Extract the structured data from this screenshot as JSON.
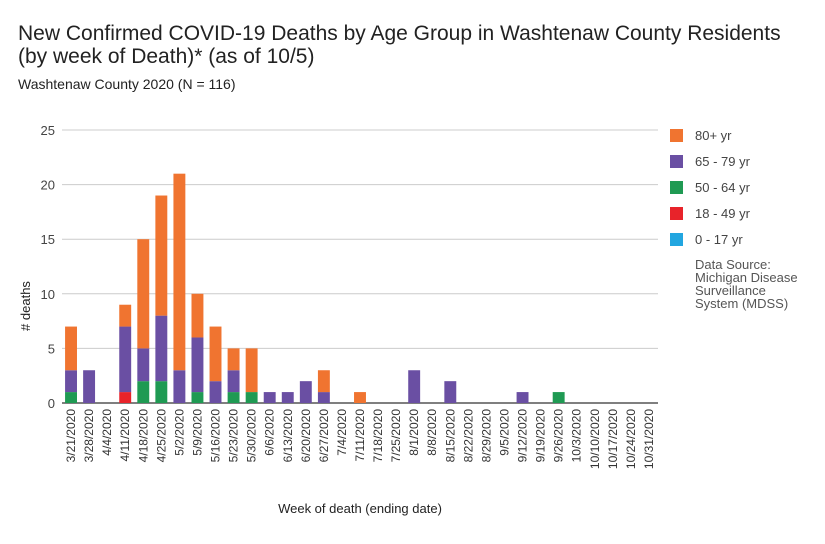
{
  "title_lines": [
    "New Confirmed COVID-19 Deaths by Age Group in Washtenaw County Residents",
    "(by week of Death)* (as of 10/5)"
  ],
  "subtitle": "Washtenaw County 2020 (N = 116)",
  "source_lines": [
    "Data Source:",
    "Michigan Disease",
    "Surveillance",
    "System (MDSS)"
  ],
  "colors": {
    "80+ yr": "#f07430",
    "65 - 79 yr": "#6a4fa3",
    "50 - 64 yr": "#1f9a53",
    "18 - 49 yr": "#e8232a",
    "0 - 17 yr": "#22a6e0",
    "grid": "#cccccc",
    "axis": "#333333"
  },
  "chart_data": {
    "type": "bar",
    "stacked": true,
    "title": "New Confirmed COVID-19 Deaths by Age Group in Washtenaw County Residents (by week of Death)* (as of 10/5)",
    "subtitle": "Washtenaw County 2020 (N = 116)",
    "xlabel": "Week of death (ending date)",
    "ylabel": "# deaths",
    "ylim": [
      0,
      25
    ],
    "yticks": [
      0,
      5,
      10,
      15,
      20,
      25
    ],
    "grid": true,
    "legend_position": "right",
    "categories": [
      "3/21/2020",
      "3/28/2020",
      "4/4/2020",
      "4/11/2020",
      "4/18/2020",
      "4/25/2020",
      "5/2/2020",
      "5/9/2020",
      "5/16/2020",
      "5/23/2020",
      "5/30/2020",
      "6/6/2020",
      "6/13/2020",
      "6/20/2020",
      "6/27/2020",
      "7/4/2020",
      "7/11/2020",
      "7/18/2020",
      "7/25/2020",
      "8/1/2020",
      "8/8/2020",
      "8/15/2020",
      "8/22/2020",
      "8/29/2020",
      "9/5/2020",
      "9/12/2020",
      "9/19/2020",
      "9/26/2020",
      "10/3/2020",
      "10/10/2020",
      "10/17/2020",
      "10/24/2020",
      "10/31/2020"
    ],
    "series": [
      {
        "name": "0 - 17 yr",
        "values": [
          0,
          0,
          0,
          0,
          0,
          0,
          0,
          0,
          0,
          0,
          0,
          0,
          0,
          0,
          0,
          0,
          0,
          0,
          0,
          0,
          0,
          0,
          0,
          0,
          0,
          0,
          0,
          0,
          0,
          0,
          0,
          0,
          0
        ]
      },
      {
        "name": "18 - 49 yr",
        "values": [
          0,
          0,
          0,
          1,
          0,
          0,
          0,
          0,
          0,
          0,
          0,
          0,
          0,
          0,
          0,
          0,
          0,
          0,
          0,
          0,
          0,
          0,
          0,
          0,
          0,
          0,
          0,
          0,
          0,
          0,
          0,
          0,
          0
        ]
      },
      {
        "name": "50 - 64 yr",
        "values": [
          1,
          0,
          0,
          0,
          2,
          2,
          0,
          1,
          0,
          1,
          1,
          0,
          0,
          0,
          0,
          0,
          0,
          0,
          0,
          0,
          0,
          0,
          0,
          0,
          0,
          0,
          0,
          1,
          0,
          0,
          0,
          0,
          0
        ]
      },
      {
        "name": "65 - 79 yr",
        "values": [
          2,
          3,
          0,
          6,
          3,
          6,
          3,
          5,
          2,
          2,
          0,
          1,
          1,
          2,
          1,
          0,
          0,
          0,
          0,
          3,
          0,
          2,
          0,
          0,
          0,
          1,
          0,
          0,
          0,
          0,
          0,
          0,
          0
        ]
      },
      {
        "name": "80+ yr",
        "values": [
          4,
          0,
          0,
          2,
          10,
          11,
          18,
          4,
          5,
          2,
          4,
          0,
          0,
          0,
          2,
          0,
          1,
          0,
          0,
          0,
          0,
          0,
          0,
          0,
          0,
          0,
          0,
          0,
          0,
          0,
          0,
          0,
          0
        ]
      }
    ],
    "legend_order": [
      "80+ yr",
      "65 - 79 yr",
      "50 - 64 yr",
      "18 - 49 yr",
      "0 - 17 yr"
    ]
  }
}
